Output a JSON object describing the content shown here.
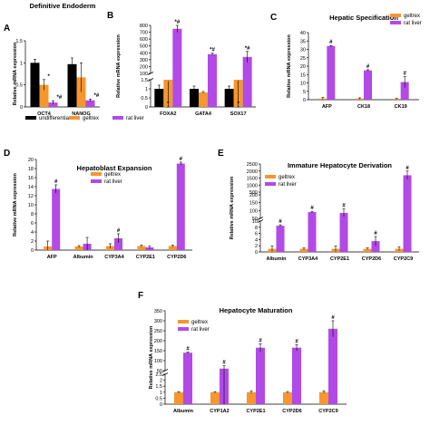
{
  "colors": {
    "undifferentiated": "#000000",
    "geltrex": "#f5962f",
    "rat_liver": "#b14ae6"
  },
  "ylabel": "Relative mRNA expression",
  "chart_data": [
    {
      "id": "A",
      "type": "bar",
      "title": "Definitive Endoderm",
      "categories": [
        "OCT4",
        "NANOG"
      ],
      "ylim": [
        0,
        1.5
      ],
      "yticks": [
        "0",
        "0.5",
        "1",
        "1.5"
      ],
      "ylabel": "Relative mRNA expression",
      "series": [
        {
          "name": "undifferentiated",
          "values": [
            1.0,
            0.97
          ],
          "err": [
            0.08,
            0.14
          ]
        },
        {
          "name": "geltrex",
          "values": [
            0.5,
            0.67
          ],
          "err": [
            0.12,
            0.33
          ]
        },
        {
          "name": "rat liver",
          "values": [
            0.1,
            0.15
          ],
          "err": [
            0.04,
            0.03
          ]
        }
      ],
      "sig": [
        [
          [
            "*"
          ],
          [
            "*",
            "#"
          ]
        ],
        [
          [
            ""
          ],
          [
            "*",
            "#"
          ]
        ]
      ]
    },
    {
      "id": "B",
      "type": "bar",
      "title": "",
      "categories": [
        "FOXA2",
        "GATA4",
        "SOX17"
      ],
      "broken_axis": true,
      "yticks_lower": [
        "0",
        "0.5",
        "1",
        "1.5"
      ],
      "yticks_upper": [
        "100",
        "200",
        "300",
        "400",
        "500",
        "600",
        "700",
        "800"
      ],
      "ylabel": "Relative mRNA expression",
      "series": [
        {
          "name": "undifferentiated",
          "values": [
            1.0,
            1.0,
            1.0
          ],
          "err": [
            0.2,
            0.15,
            0.15
          ]
        },
        {
          "name": "geltrex",
          "values": [
            1.5,
            0.8,
            1.5
          ],
          "err": [
            0.08,
            0.05,
            0.05
          ]
        },
        {
          "name": "rat liver",
          "values": [
            750,
            380,
            340
          ],
          "err": [
            50,
            15,
            80
          ]
        }
      ],
      "sig_geltrex": [
        "*",
        "",
        "*"
      ],
      "sig_ratliver": [
        "*#",
        "*#",
        "*#"
      ]
    },
    {
      "id": "C",
      "type": "bar",
      "title": "Hepatic Specification",
      "categories": [
        "AFP",
        "CK18",
        "CK19"
      ],
      "ylim": [
        0,
        40
      ],
      "yticks": [
        "0",
        "5",
        "10",
        "15",
        "20",
        "25",
        "30",
        "35",
        "40"
      ],
      "ylabel": "Relative mRNA expression",
      "series": [
        {
          "name": "geltrex",
          "values": [
            0.7,
            0.7,
            0.5
          ],
          "err": [
            0.6,
            0.4,
            0.3
          ]
        },
        {
          "name": "rat liver",
          "values": [
            32,
            17.5,
            10.5
          ],
          "err": [
            0.3,
            0.4,
            3.2
          ]
        }
      ],
      "sig_ratliver": [
        "#",
        "#",
        "#"
      ]
    },
    {
      "id": "D",
      "type": "bar",
      "title": "Hepatoblast Expansion",
      "categories": [
        "AFP",
        "Albumin",
        "CYP3A4",
        "CYP2E1",
        "CYP2D6"
      ],
      "ylim": [
        0,
        20
      ],
      "yticks": [
        "0",
        "2",
        "4",
        "6",
        "8",
        "10",
        "12",
        "14",
        "16",
        "18",
        "20"
      ],
      "ylabel": "Relative mRNA expression",
      "series": [
        {
          "name": "geltrex",
          "values": [
            0.8,
            0.8,
            0.9,
            0.9,
            0.9
          ],
          "err": [
            1.2,
            0.2,
            0.5,
            0.2,
            0.2
          ]
        },
        {
          "name": "rat liver",
          "values": [
            13.5,
            1.4,
            2.6,
            0.6,
            19.1
          ],
          "err": [
            0.9,
            1.4,
            1.0,
            0.3,
            0.3
          ]
        }
      ],
      "sig_ratliver": [
        "#",
        "",
        "#",
        "",
        "#"
      ]
    },
    {
      "id": "E",
      "type": "bar",
      "title": "Immature Hepatocyte Derivation",
      "categories": [
        "Albumin",
        "CYP3A4",
        "CYP2E1",
        "CYP2D6",
        "CYP2C9"
      ],
      "broken_axis": true,
      "yticks_lower": [
        "0",
        "2",
        "4",
        "6",
        "8",
        "10"
      ],
      "yticks_upper": [
        "50",
        "100",
        "150",
        "200",
        "500",
        "1000",
        "1500",
        "2000",
        "2500"
      ],
      "ylabel": "Relative mRNA expression",
      "series": [
        {
          "name": "geltrex",
          "values": [
            1,
            1,
            1,
            1,
            1
          ],
          "err": [
            0.9,
            0.3,
            0.9,
            0.3,
            0.6
          ]
        },
        {
          "name": "rat liver",
          "values": [
            8.5,
            90,
            85,
            3.5,
            1700
          ],
          "err": [
            0.3,
            5,
            25,
            1.5,
            300
          ]
        }
      ],
      "sig_ratliver": [
        "#",
        "#",
        "#",
        "#",
        "#"
      ]
    },
    {
      "id": "F",
      "type": "bar",
      "title": "Hepatocyte Maturation",
      "categories": [
        "Albumin",
        "CYP1A2",
        "CYP2E1",
        "CYP2D6",
        "CYP2C9"
      ],
      "broken_axis": true,
      "yticks_lower": [
        "0",
        "0.5",
        "1",
        "1.5",
        "2",
        "2.5"
      ],
      "yticks_upper": [
        "50",
        "100",
        "150",
        "200",
        "250",
        "300",
        "350"
      ],
      "ylabel": "Relative mRNA expression",
      "series": [
        {
          "name": "geltrex",
          "values": [
            1,
            1,
            1,
            1,
            1
          ],
          "err": [
            0.05,
            0.05,
            0.1,
            0.05,
            0.1
          ]
        },
        {
          "name": "rat liver",
          "values": [
            140,
            60,
            165,
            165,
            260
          ],
          "err": [
            3,
            15,
            20,
            15,
            40
          ]
        }
      ],
      "sig_ratliver": [
        "#",
        "#",
        "#",
        "#",
        "#"
      ]
    }
  ]
}
